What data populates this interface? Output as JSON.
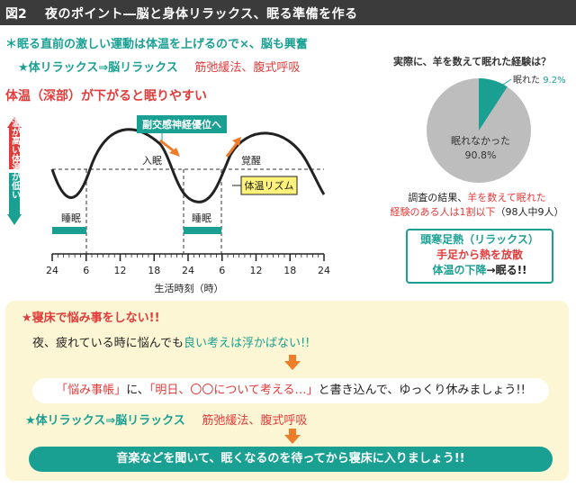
{
  "header": {
    "figure_label": "図2",
    "title": "夜のポイント―脳と身体リラックス、眠る準備を作る"
  },
  "notes": {
    "line1_prefix": "＊",
    "line1": "眠る直前の激しい運動は体温を上げるので×、脳も興奮",
    "line2_teal": "★体リラックス⇒脳リラックス",
    "line2_red": "筋弛緩法、腹式呼吸",
    "line3": "体温（深部）が下がると眠りやすい"
  },
  "rhythm_chart": {
    "up_label": "体温が高い",
    "down_label": "体温が低い",
    "callout_parasympathetic": "副交感神経優位へ",
    "label_sleep_onset": "入眠",
    "label_wake": "覚醒",
    "legend_rhythm": "体温リズム",
    "sleep_label_1": "睡眠",
    "sleep_label_2": "睡眠",
    "x_ticks": [
      "24",
      "6",
      "12",
      "18",
      "24",
      "6",
      "12",
      "18",
      "24"
    ],
    "x_axis_label": "生活時刻（時）",
    "colors": {
      "teal": "#1aa093",
      "orange": "#ee7d2a",
      "red": "#e23b3b",
      "yellow": "#fff27a"
    }
  },
  "pie": {
    "question": "実際に、羊を数えて眠れた経験は？",
    "slice_yes_label": "眠れた",
    "slice_yes_value": "9.2%",
    "slice_no_label": "眠れなかった",
    "slice_no_value": "90.8%",
    "yes_fraction": 0.092,
    "colors": {
      "yes": "#1aa093",
      "no": "#bdbdbd"
    }
  },
  "survey": {
    "prefix": "調査の結果、",
    "highlight1": "羊を数えて眠れた",
    "highlight2": "経験のある人は1割以下",
    "suffix": "（98人中9人）"
  },
  "conclusion": {
    "line1": "頭寒足熱（リラックス）",
    "line2": "手足から熱を放散",
    "line3_teal": "体温の下降",
    "line3_arrow": "→",
    "line3_rest": "眠る!!"
  },
  "panel": {
    "heading": "★寝床で悩み事をしない!!",
    "line1_plain": "夜、疲れている時に悩んでも",
    "line1_teal": "良い考えは浮かばない!!",
    "pill_q1": "「悩み事帳」",
    "pill_mid": "に、",
    "pill_q2": "「明日、〇〇について考える…」",
    "pill_end": "と書き込んで、ゆっくり休みましょう!!",
    "line2_teal": "★体リラックス⇒脳リラックス",
    "line2_red": "筋弛緩法、腹式呼吸",
    "bottom_bar": "音楽などを聞いて、眠くなるのを待ってから寝床に入りましょう!!"
  }
}
